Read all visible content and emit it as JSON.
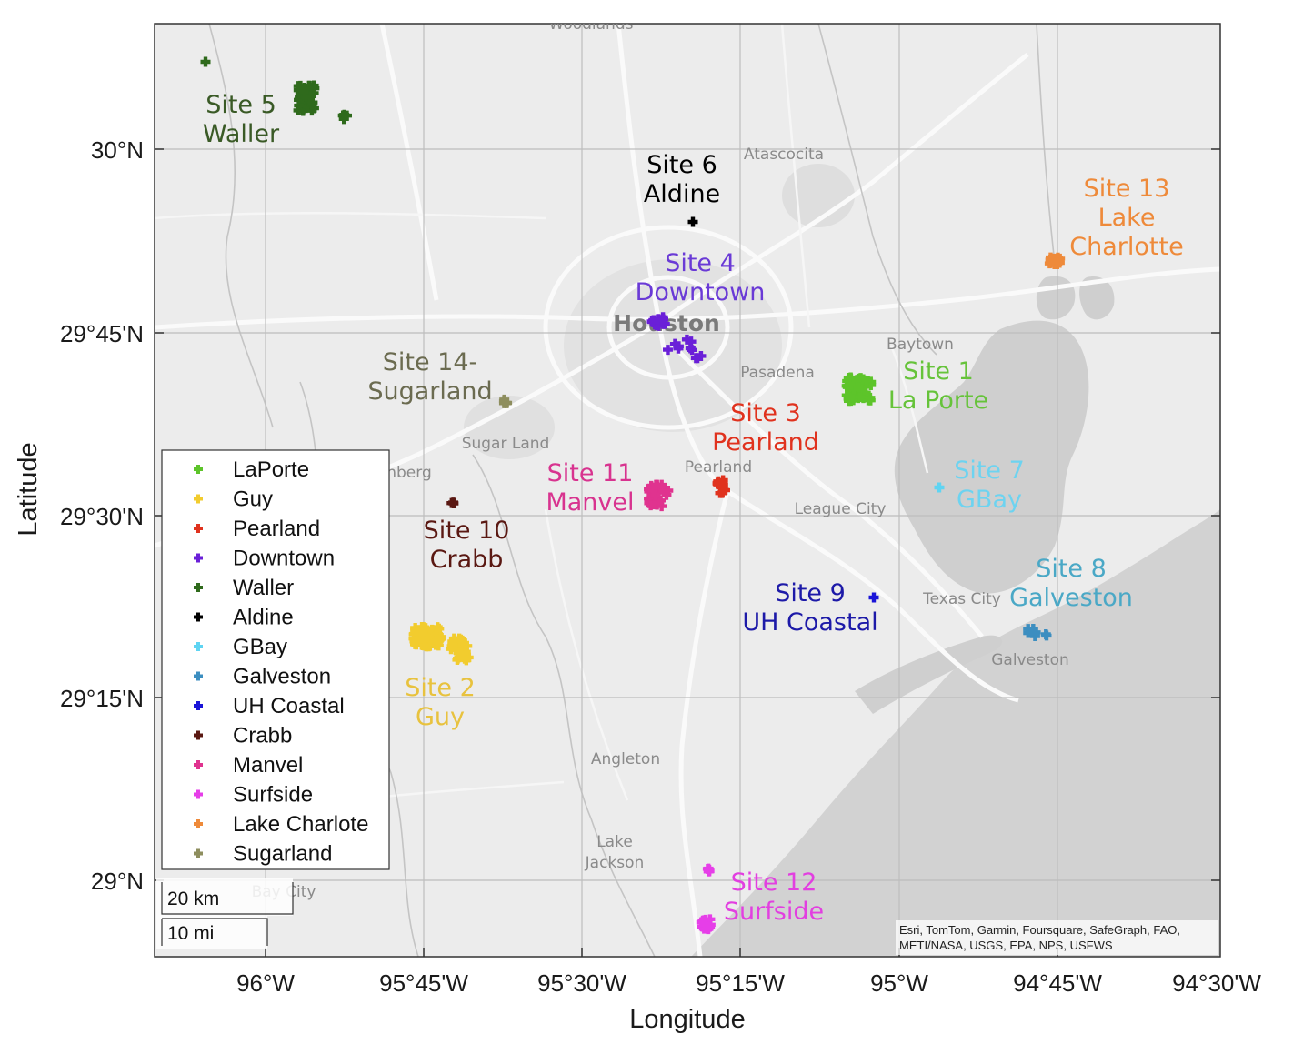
{
  "axes": {
    "xlabel": "Longitude",
    "ylabel": "Latitude",
    "xticks": [
      "96°W",
      "95°45'W",
      "95°30'W",
      "95°15'W",
      "95°W",
      "94°45'W",
      "94°30'W"
    ],
    "yticks": [
      "30°N",
      "29°45'N",
      "29°30'N",
      "29°15'N",
      "29°N"
    ]
  },
  "places": [
    {
      "label": "Woodlands"
    },
    {
      "label": "Atascocita"
    },
    {
      "label": "Houston"
    },
    {
      "label": "Baytown"
    },
    {
      "label": "Pasadena"
    },
    {
      "label": "Sugar Land"
    },
    {
      "label": "Pearland"
    },
    {
      "label": "League City"
    },
    {
      "label": "Texas City"
    },
    {
      "label": "Galveston"
    },
    {
      "label": "Angleton"
    },
    {
      "label": "Lake"
    },
    {
      "label": "Jackson"
    },
    {
      "label": "Bay City"
    },
    {
      "label": "nberg"
    }
  ],
  "sites": [
    {
      "name": "LaPorte",
      "line1": "Site 1",
      "line2": "La Porte",
      "color": "#5dc42a"
    },
    {
      "name": "Guy",
      "line1": "Site 2",
      "line2": "Guy",
      "color": "#f2cc2e"
    },
    {
      "name": "Pearland",
      "line1": "Site 3",
      "line2": "Pearland",
      "color": "#e0321e"
    },
    {
      "name": "Downtown",
      "line1": "Site 4",
      "line2": "Downtown",
      "color": "#6a1fd8"
    },
    {
      "name": "Waller",
      "line1": "Site 5",
      "line2": "Waller",
      "color": "#2f6a1c"
    },
    {
      "name": "Aldine",
      "line1": "Site 6",
      "line2": "Aldine",
      "color": "#000000"
    },
    {
      "name": "GBay",
      "line1": "Site 7",
      "line2": "GBay",
      "color": "#5fd4f2"
    },
    {
      "name": "Galveston",
      "line1": "Site 8",
      "line2": "Galveston",
      "color": "#3c8ec0"
    },
    {
      "name": "UH Coastal",
      "line1": "Site 9",
      "line2": "UH Coastal",
      "color": "#1a14d8"
    },
    {
      "name": "Crabb",
      "line1": "Site 10",
      "line2": "Crabb",
      "color": "#5a1812"
    },
    {
      "name": "Manvel",
      "line1": "Site 11",
      "line2": "Manvel",
      "color": "#e0338f"
    },
    {
      "name": "Surfside",
      "line1": "Site 12",
      "line2": "Surfside",
      "color": "#e63ee8"
    },
    {
      "name": "Lake Charlote",
      "line1": "Site 13",
      "line2": "Lake",
      "line3": "Charlotte",
      "color": "#ee8a3a"
    },
    {
      "name": "Sugarland",
      "line1": "Site 14-",
      "line2": "Sugarland",
      "color": "#8e8e5e"
    }
  ],
  "site_label_colors": {
    "LaPorte": "#66c33a",
    "Guy": "#e8c23e",
    "Pearland": "#e0321e",
    "Downtown": "#6a3ad6",
    "Waller": "#3a5a26",
    "Aldine": "#000000",
    "GBay": "#6dd3f0",
    "Galveston": "#4aa8c6",
    "UH Coastal": "#1d1aa8",
    "Crabb": "#5a1812",
    "Manvel": "#d8338f",
    "Surfside": "#e23fe0",
    "Lake Charlote": "#ee8a3a",
    "Sugarland": "#6b6b50"
  },
  "scale": {
    "km": "20 km",
    "mi": "10 mi"
  },
  "attribution": {
    "line1": "Esri, TomTom, Garmin, Foursquare, SafeGraph, FAO,",
    "line2": "METI/NASA, USGS, EPA, NPS, USFWS"
  }
}
